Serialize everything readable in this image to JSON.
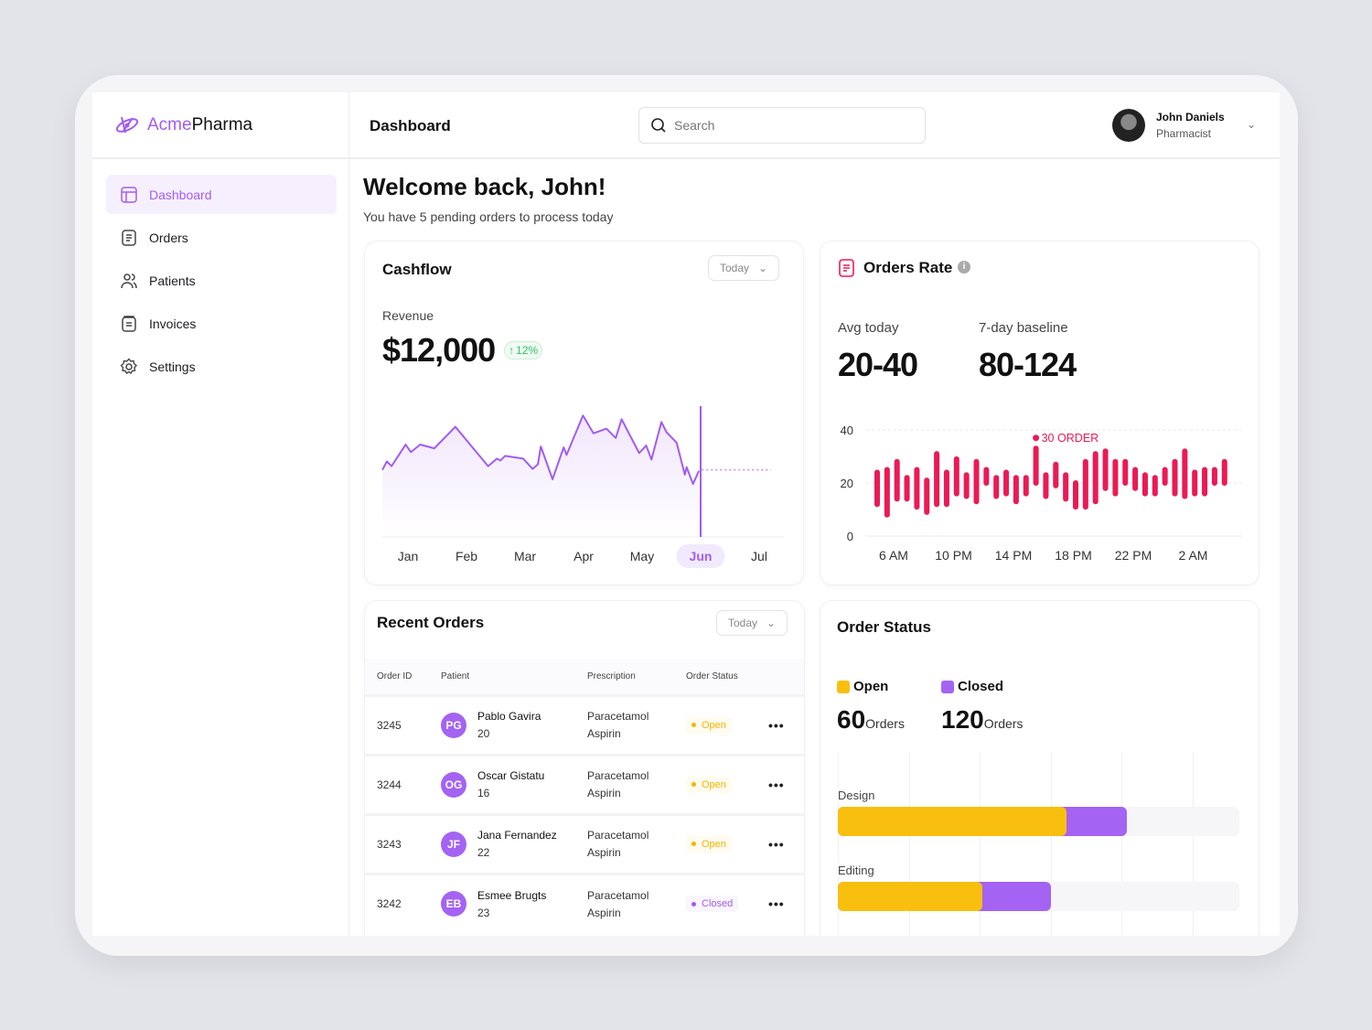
{
  "brand": {
    "part1": "Acme",
    "part2": "Pharma"
  },
  "sidebar": {
    "items": [
      {
        "label": "Dashboard",
        "icon": "layout-icon",
        "active": true
      },
      {
        "label": "Orders",
        "icon": "document-icon"
      },
      {
        "label": "Patients",
        "icon": "users-icon"
      },
      {
        "label": "Invoices",
        "icon": "invoice-icon"
      },
      {
        "label": "Settings",
        "icon": "gear-icon"
      }
    ]
  },
  "header": {
    "title": "Dashboard",
    "search_placeholder": "Search",
    "user": {
      "name": "John Daniels",
      "role": "Pharmacist"
    }
  },
  "welcome": {
    "title": "Welcome back, John!",
    "subtitle": "You have 5 pending orders to process today"
  },
  "cashflow": {
    "title": "Cashflow",
    "period": "Today",
    "revenue_label": "Revenue",
    "revenue": "$12,000",
    "change": "12%"
  },
  "orders_rate": {
    "title": "Orders Rate",
    "avg_label": "Avg today",
    "avg_value": "20-40",
    "baseline_label": "7-day baseline",
    "baseline_value": "80-124",
    "annotation": "30 ORDER"
  },
  "recent_orders": {
    "title": "Recent Orders",
    "period": "Today",
    "columns": [
      "Order ID",
      "Patient",
      "Prescription",
      "Order Status"
    ],
    "rows": [
      {
        "id": "3245",
        "initials": "PG",
        "name": "Pablo Gavira",
        "age": "20",
        "rx1": "Paracetamol",
        "rx2": "Aspirin",
        "status": "Open"
      },
      {
        "id": "3244",
        "initials": "OG",
        "name": "Oscar Gistatu",
        "age": "16",
        "rx1": "Paracetamol",
        "rx2": "Aspirin",
        "status": "Open"
      },
      {
        "id": "3243",
        "initials": "JF",
        "name": "Jana Fernandez",
        "age": "22",
        "rx1": "Paracetamol",
        "rx2": "Aspirin",
        "status": "Open"
      },
      {
        "id": "3242",
        "initials": "EB",
        "name": "Esmee Brugts",
        "age": "23",
        "rx1": "Paracetamol",
        "rx2": "Aspirin",
        "status": "Closed"
      }
    ]
  },
  "order_status": {
    "title": "Order Status",
    "open_label": "Open",
    "open_count": "60",
    "closed_label": "Closed",
    "closed_count": "120",
    "unit": "Orders"
  },
  "colors": {
    "accent": "#a25cf0",
    "open": "#f9bf0f",
    "closed": "#a463f2",
    "orders_bar": "#ea1a55",
    "positive": "#2fbf5f"
  },
  "chart_data": [
    {
      "type": "area",
      "name": "cashflow",
      "categories": [
        "Jan",
        "Feb",
        "Mar",
        "Apr",
        "May",
        "Jun",
        "Jul"
      ],
      "selected": "Jun",
      "ylim": [
        0,
        120
      ],
      "grid": false,
      "x": [
        0.56,
        0.64,
        0.72,
        0.96,
        1.05,
        1.21,
        1.45,
        1.81,
        2.37,
        2.52,
        2.58,
        2.66,
        2.97,
        3.13,
        3.22,
        3.27,
        3.47,
        3.66,
        3.71,
        3.99,
        4.17,
        4.39,
        4.55,
        4.65,
        4.95,
        5.07,
        5.16,
        5.33,
        5.42,
        5.59,
        5.73,
        5.76,
        5.87,
        5.97
      ],
      "y": [
        52,
        61,
        56,
        79,
        71,
        79,
        75,
        98,
        56,
        64,
        62,
        67,
        64,
        53,
        58,
        77,
        42,
        76,
        68,
        110,
        91,
        96,
        86,
        106,
        70,
        78,
        63,
        103,
        92,
        81,
        47,
        55,
        37,
        51
      ],
      "projection": {
        "from": 6.02,
        "to": 7.2,
        "value": 52
      }
    },
    {
      "type": "range-bar",
      "name": "orders_rate",
      "yticks": [
        0,
        20,
        40
      ],
      "ylim": [
        0,
        40
      ],
      "xticks": [
        "6 AM",
        "10 PM",
        "14 PM",
        "18 PM",
        "22 PM",
        "2 AM"
      ],
      "grid": true,
      "annotated_index": 16,
      "low": [
        12,
        8,
        14,
        14,
        11,
        9,
        12,
        12,
        16,
        15,
        13,
        20,
        15,
        16,
        13,
        16,
        20,
        15,
        19,
        14,
        11,
        11,
        13,
        18,
        16,
        20,
        18,
        16,
        16,
        20,
        16,
        15,
        16,
        16,
        20,
        20
      ],
      "high": [
        24,
        25,
        28,
        22,
        25,
        21,
        31,
        24,
        29,
        23,
        28,
        25,
        22,
        24,
        22,
        22,
        33,
        23,
        27,
        23,
        20,
        28,
        31,
        32,
        28,
        28,
        25,
        23,
        22,
        25,
        28,
        32,
        24,
        25,
        25,
        28
      ]
    },
    {
      "type": "stacked-bar-horizontal",
      "name": "order_status",
      "categories": [
        "Design",
        "Editing"
      ],
      "xlim": [
        0,
        100
      ],
      "series": [
        {
          "name": "Open",
          "values": [
            57,
            36
          ]
        },
        {
          "name": "Closed",
          "values": [
            15,
            17
          ]
        }
      ]
    }
  ]
}
